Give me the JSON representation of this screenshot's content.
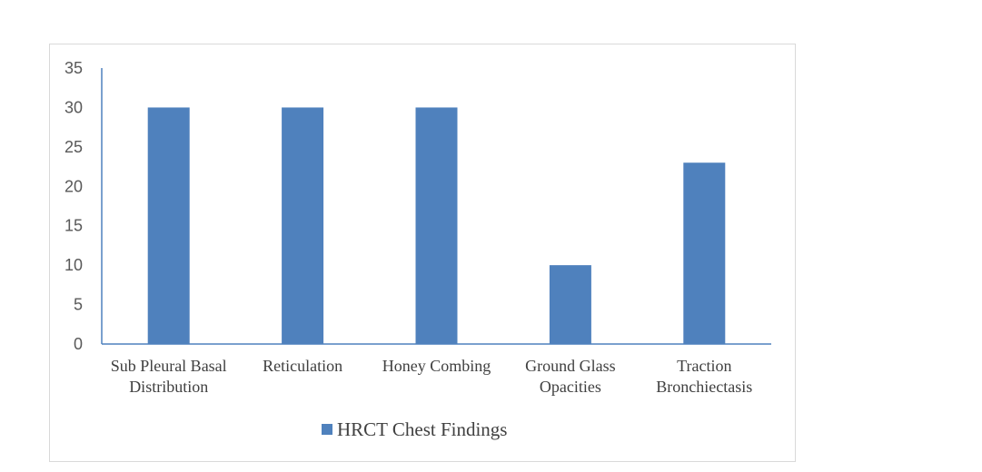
{
  "chart_data": {
    "type": "bar",
    "categories": [
      [
        "Sub Pleural Basal",
        "Distribution"
      ],
      [
        "Reticulation"
      ],
      [
        "Honey Combing"
      ],
      [
        "Ground Glass",
        "Opacities"
      ],
      [
        "Traction",
        "Bronchiectasis"
      ]
    ],
    "series": [
      {
        "name": "HRCT Chest Findings",
        "values": [
          30,
          30,
          30,
          10,
          23
        ]
      }
    ],
    "ylim": [
      0,
      35
    ],
    "yticks": [
      0,
      5,
      10,
      15,
      20,
      25,
      30,
      35
    ],
    "title": "",
    "xlabel": "",
    "ylabel": "",
    "grid": false,
    "legend_position": "bottom",
    "colors": {
      "bar": "#4f81bd",
      "axis": "#4f81bd"
    }
  }
}
